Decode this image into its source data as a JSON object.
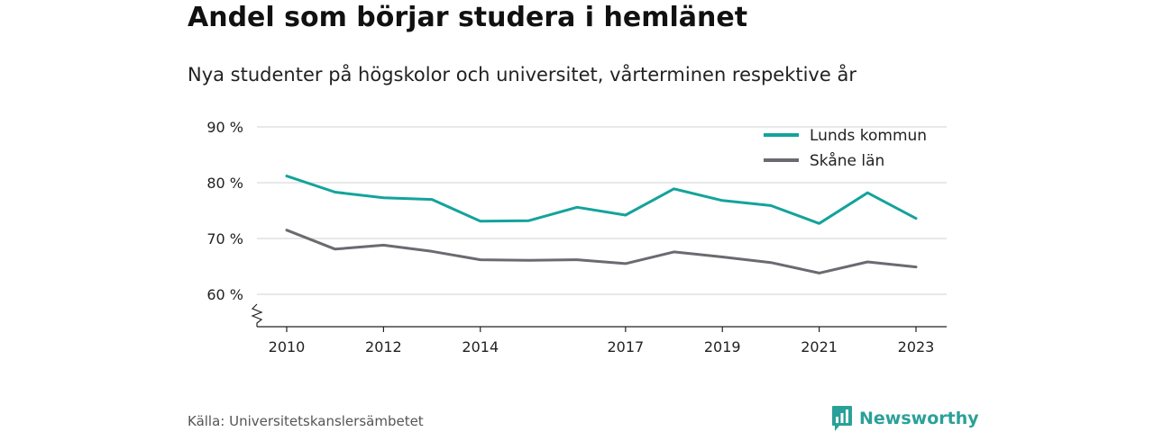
{
  "header": {
    "title": "Andel som börjar studera i hemlänet",
    "subtitle": "Nya studenter på högskolor och universitet, vårterminen respektive år"
  },
  "footer": {
    "source": "Källa: Universitetskanslersämbetet",
    "brand": "Newsworthy",
    "brand_icon": "newsworthy-logo-icon",
    "brand_color": "#2aa198"
  },
  "chart_data": {
    "type": "line",
    "title": "Andel som börjar studera i hemlänet",
    "subtitle": "Nya studenter på högskolor och universitet, vårterminen respektive år",
    "x": [
      2010,
      2011,
      2012,
      2013,
      2014,
      2015,
      2016,
      2017,
      2018,
      2019,
      2020,
      2021,
      2022,
      2023
    ],
    "x_ticks": [
      2010,
      2012,
      2014,
      2017,
      2019,
      2021,
      2023
    ],
    "y_ticks": [
      60,
      70,
      80,
      90
    ],
    "y_tick_labels": [
      "60 %",
      "70 %",
      "80 %",
      "90 %"
    ],
    "ylim": [
      54,
      92
    ],
    "y_axis_break": true,
    "grid": true,
    "legend_position": "top-right",
    "series": [
      {
        "name": "Lunds kommun",
        "color": "#13a39b",
        "values": [
          81.2,
          78.3,
          77.3,
          77.0,
          73.1,
          73.2,
          75.6,
          74.2,
          78.9,
          76.8,
          75.9,
          72.7,
          78.2,
          73.6
        ]
      },
      {
        "name": "Skåne län",
        "color": "#6b6a70",
        "values": [
          71.5,
          68.1,
          68.8,
          67.7,
          66.2,
          66.1,
          66.2,
          65.5,
          67.6,
          66.7,
          65.7,
          63.8,
          65.8,
          64.9
        ]
      }
    ]
  }
}
